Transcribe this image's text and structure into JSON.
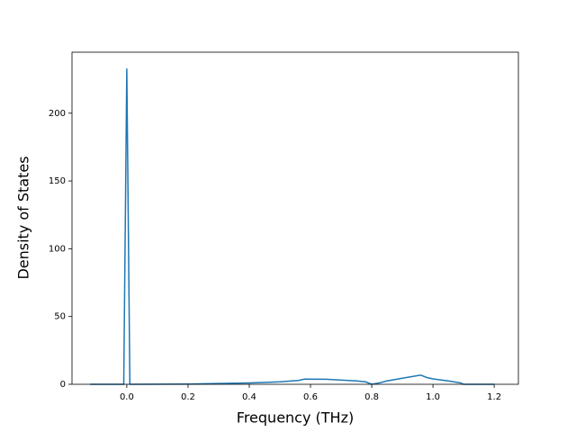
{
  "chart_data": {
    "type": "line",
    "x_label": "Frequency (THz)",
    "y_label": "Density of States",
    "x": [
      -0.12,
      -0.01,
      0.0,
      0.01,
      0.2,
      0.4,
      0.5,
      0.56,
      0.58,
      0.65,
      0.75,
      0.78,
      0.8,
      0.82,
      0.85,
      0.9,
      0.96,
      0.98,
      1.0,
      1.05,
      1.09,
      1.1,
      1.2
    ],
    "values": [
      0,
      0,
      233,
      0,
      0.2,
      1,
      1.8,
      2.8,
      3.8,
      3.7,
      2.5,
      1.8,
      0,
      0.8,
      2.5,
      4.5,
      6.8,
      5,
      4,
      2.5,
      1,
      0,
      0
    ],
    "color": "#1f77b4",
    "xlim": [
      -0.179,
      1.279
    ],
    "ylim": [
      0,
      245
    ],
    "xticks": [
      {
        "value": 0,
        "label": "0.0"
      },
      0.2,
      0.4,
      0.6,
      0.8,
      {
        "value": 1,
        "label": "1.0"
      },
      1.2
    ],
    "yticks": [
      0,
      50,
      100,
      150,
      200
    ]
  }
}
